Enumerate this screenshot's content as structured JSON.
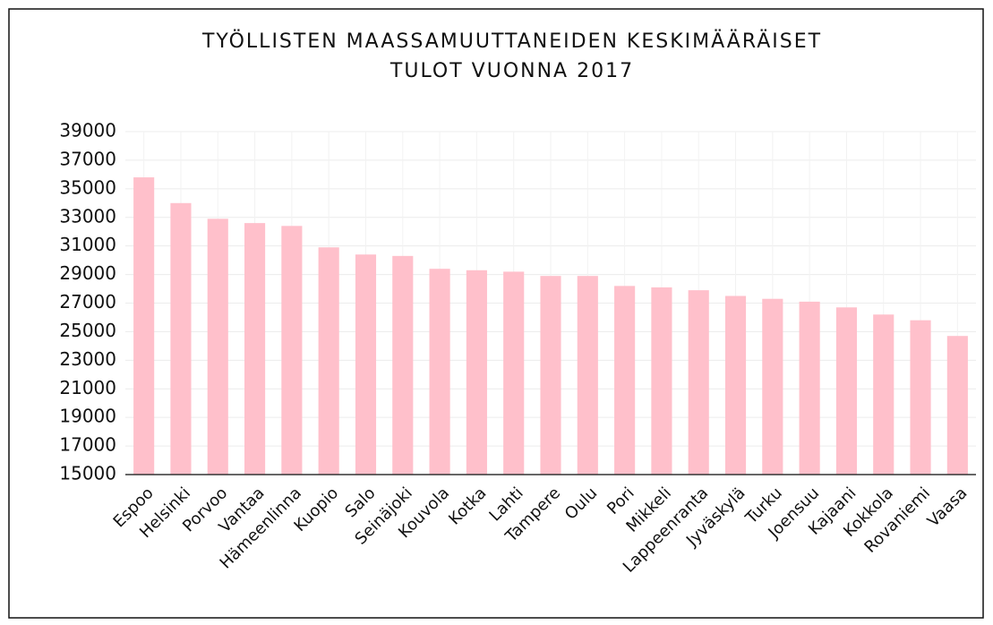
{
  "chart_data": {
    "type": "bar",
    "title": [
      "TYÖLLISTEN MAASSAMUUTTANEIDEN KESKIMÄÄRÄISET",
      "TULOT VUONNA 2017"
    ],
    "categories": [
      "Espoo",
      "Helsinki",
      "Porvoo",
      "Vantaa",
      "Hämeenlinna",
      "Kuopio",
      "Salo",
      "Seinäjoki",
      "Kouvola",
      "Kotka",
      "Lahti",
      "Tampere",
      "Oulu",
      "Pori",
      "Mikkeli",
      "Lappeenranta",
      "Jyväskylä",
      "Turku",
      "Joensuu",
      "Kajaani",
      "Kokkola",
      "Rovaniemi",
      "Vaasa"
    ],
    "values": [
      35800,
      34000,
      32900,
      32600,
      32400,
      30900,
      30400,
      30300,
      29400,
      29300,
      29200,
      28900,
      28900,
      28200,
      28100,
      27900,
      27500,
      27300,
      27100,
      26700,
      26200,
      25800,
      24700
    ],
    "color": "#ffc0cb",
    "ylim": [
      15000,
      39000
    ],
    "yticks": [
      15000,
      17000,
      19000,
      21000,
      23000,
      25000,
      27000,
      29000,
      31000,
      33000,
      35000,
      37000,
      39000
    ],
    "grid": true
  }
}
